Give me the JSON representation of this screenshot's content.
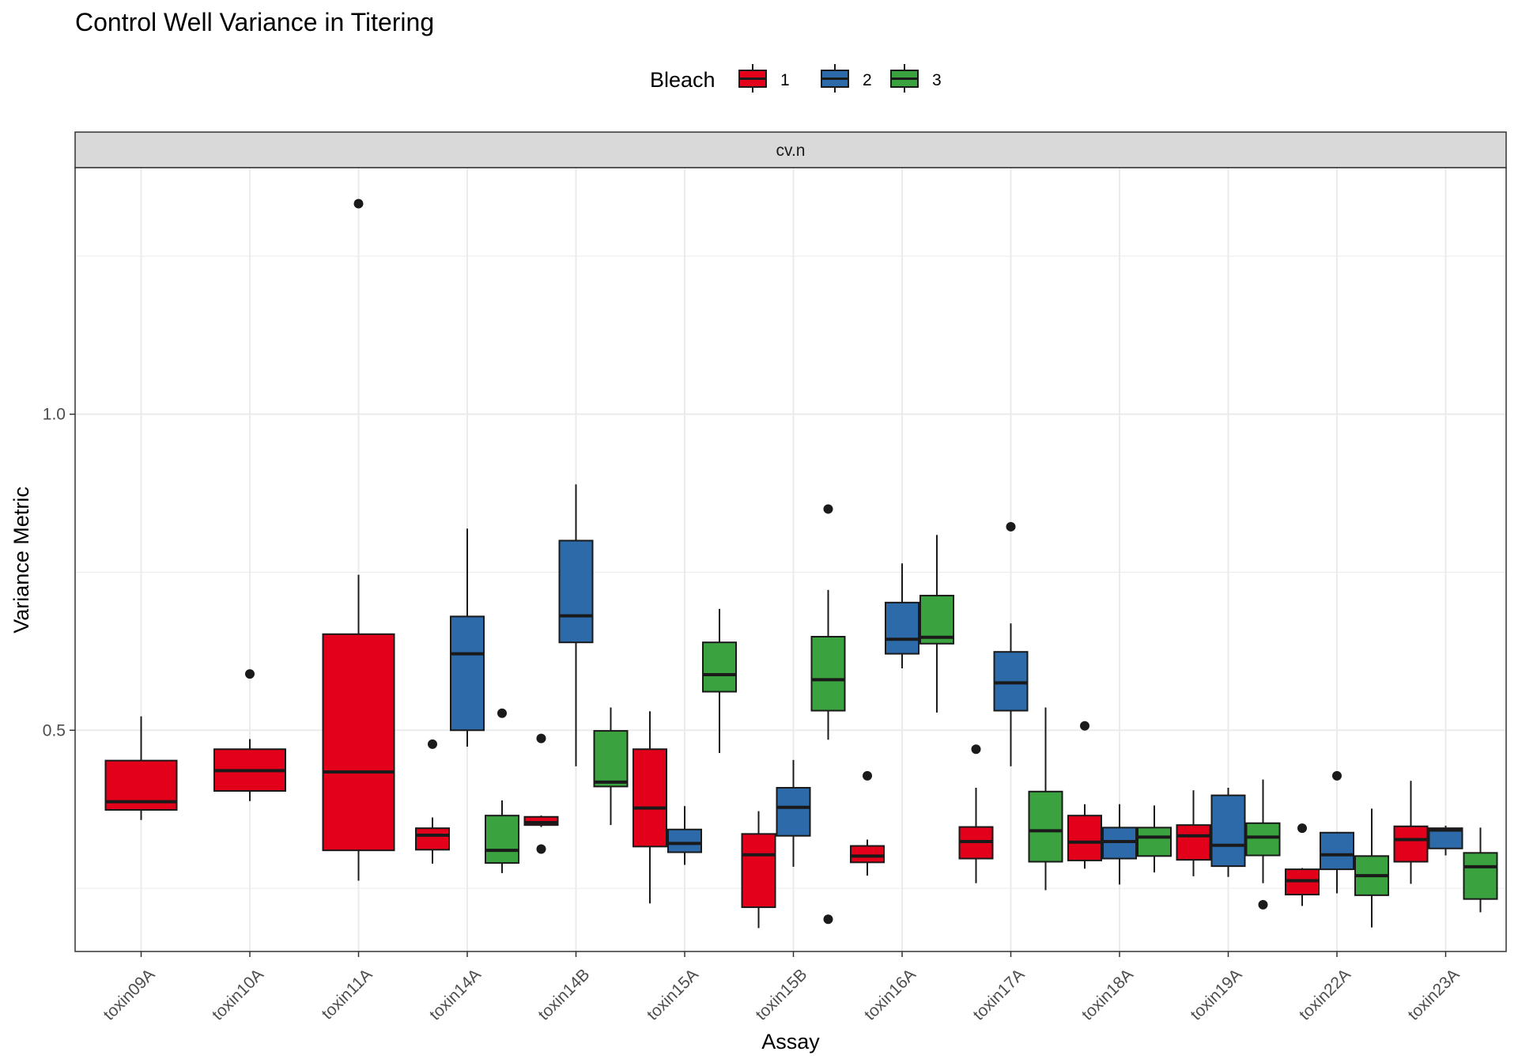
{
  "chart_data": {
    "type": "boxplot",
    "title": "Control Well Variance in Titering",
    "xlabel": "Assay",
    "ylabel": "Variance Metric",
    "facet": "cv.n",
    "legend": {
      "title": "Bleach",
      "position": "top",
      "entries": [
        "1",
        "2",
        "3"
      ]
    },
    "colors": {
      "1": "#E2001A",
      "2": "#2C6AAA",
      "3": "#3AA23E"
    },
    "ylim": [
      0.15,
      1.39
    ],
    "yticks": [
      0.5,
      1.0
    ],
    "ytick_labels": [
      "0.5",
      "1.0"
    ],
    "grid": true,
    "categories": [
      "toxin09A",
      "toxin10A",
      "toxin11A",
      "toxin14A",
      "toxin14B",
      "toxin15A",
      "toxin15B",
      "toxin16A",
      "toxin17A",
      "toxin18A",
      "toxin19A",
      "toxin22A",
      "toxin23A"
    ],
    "boxes": [
      {
        "category": "toxin09A",
        "group": "1",
        "whisker_low": 0.358,
        "q1": 0.374,
        "median": 0.387,
        "q3": 0.452,
        "whisker_high": 0.522,
        "outliers": []
      },
      {
        "category": "toxin10A",
        "group": "1",
        "whisker_low": 0.388,
        "q1": 0.404,
        "median": 0.436,
        "q3": 0.47,
        "whisker_high": 0.486,
        "outliers": [
          0.589
        ]
      },
      {
        "category": "toxin11A",
        "group": "1",
        "whisker_low": 0.262,
        "q1": 0.31,
        "median": 0.434,
        "q3": 0.652,
        "whisker_high": 0.746,
        "outliers": [
          1.333
        ]
      },
      {
        "category": "toxin14A",
        "group": "1",
        "whisker_low": 0.289,
        "q1": 0.311,
        "median": 0.334,
        "q3": 0.345,
        "whisker_high": 0.362,
        "outliers": [
          0.478
        ]
      },
      {
        "category": "toxin14A",
        "group": "2",
        "whisker_low": 0.474,
        "q1": 0.5,
        "median": 0.621,
        "q3": 0.68,
        "whisker_high": 0.819,
        "outliers": []
      },
      {
        "category": "toxin14A",
        "group": "3",
        "whisker_low": 0.274,
        "q1": 0.29,
        "median": 0.31,
        "q3": 0.365,
        "whisker_high": 0.389,
        "outliers": [
          0.527
        ]
      },
      {
        "category": "toxin14B",
        "group": "1",
        "whisker_low": 0.347,
        "q1": 0.35,
        "median": 0.354,
        "q3": 0.363,
        "whisker_high": 0.365,
        "outliers": [
          0.487,
          0.312
        ]
      },
      {
        "category": "toxin14B",
        "group": "2",
        "whisker_low": 0.443,
        "q1": 0.639,
        "median": 0.681,
        "q3": 0.8,
        "whisker_high": 0.889,
        "outliers": []
      },
      {
        "category": "toxin14B",
        "group": "3",
        "whisker_low": 0.35,
        "q1": 0.411,
        "median": 0.418,
        "q3": 0.499,
        "whisker_high": 0.536,
        "outliers": []
      },
      {
        "category": "toxin15A",
        "group": "1",
        "whisker_low": 0.226,
        "q1": 0.316,
        "median": 0.377,
        "q3": 0.47,
        "whisker_high": 0.53,
        "outliers": []
      },
      {
        "category": "toxin15A",
        "group": "2",
        "whisker_low": 0.287,
        "q1": 0.307,
        "median": 0.321,
        "q3": 0.343,
        "whisker_high": 0.38,
        "outliers": []
      },
      {
        "category": "toxin15A",
        "group": "3",
        "whisker_low": 0.464,
        "q1": 0.561,
        "median": 0.588,
        "q3": 0.639,
        "whisker_high": 0.692,
        "outliers": []
      },
      {
        "category": "toxin15B",
        "group": "1",
        "whisker_low": 0.187,
        "q1": 0.22,
        "median": 0.303,
        "q3": 0.336,
        "whisker_high": 0.372,
        "outliers": []
      },
      {
        "category": "toxin15B",
        "group": "2",
        "whisker_low": 0.284,
        "q1": 0.333,
        "median": 0.378,
        "q3": 0.409,
        "whisker_high": 0.453,
        "outliers": []
      },
      {
        "category": "toxin15B",
        "group": "3",
        "whisker_low": 0.485,
        "q1": 0.531,
        "median": 0.58,
        "q3": 0.648,
        "whisker_high": 0.722,
        "outliers": [
          0.85,
          0.201
        ]
      },
      {
        "category": "toxin16A",
        "group": "1",
        "whisker_low": 0.27,
        "q1": 0.291,
        "median": 0.301,
        "q3": 0.317,
        "whisker_high": 0.327,
        "outliers": [
          0.428
        ]
      },
      {
        "category": "toxin16A",
        "group": "2",
        "whisker_low": 0.598,
        "q1": 0.621,
        "median": 0.644,
        "q3": 0.702,
        "whisker_high": 0.764,
        "outliers": []
      },
      {
        "category": "toxin16A",
        "group": "3",
        "whisker_low": 0.528,
        "q1": 0.637,
        "median": 0.647,
        "q3": 0.713,
        "whisker_high": 0.809,
        "outliers": []
      },
      {
        "category": "toxin17A",
        "group": "1",
        "whisker_low": 0.258,
        "q1": 0.297,
        "median": 0.324,
        "q3": 0.347,
        "whisker_high": 0.409,
        "outliers": [
          0.47
        ]
      },
      {
        "category": "toxin17A",
        "group": "2",
        "whisker_low": 0.443,
        "q1": 0.531,
        "median": 0.575,
        "q3": 0.624,
        "whisker_high": 0.669,
        "outliers": [
          0.822
        ]
      },
      {
        "category": "toxin17A",
        "group": "3",
        "whisker_low": 0.247,
        "q1": 0.292,
        "median": 0.341,
        "q3": 0.403,
        "whisker_high": 0.536,
        "outliers": []
      },
      {
        "category": "toxin18A",
        "group": "1",
        "whisker_low": 0.281,
        "q1": 0.294,
        "median": 0.323,
        "q3": 0.365,
        "whisker_high": 0.383,
        "outliers": [
          0.507
        ]
      },
      {
        "category": "toxin18A",
        "group": "2",
        "whisker_low": 0.256,
        "q1": 0.297,
        "median": 0.324,
        "q3": 0.346,
        "whisker_high": 0.383,
        "outliers": []
      },
      {
        "category": "toxin18A",
        "group": "3",
        "whisker_low": 0.275,
        "q1": 0.301,
        "median": 0.331,
        "q3": 0.346,
        "whisker_high": 0.381,
        "outliers": []
      },
      {
        "category": "toxin19A",
        "group": "1",
        "whisker_low": 0.269,
        "q1": 0.295,
        "median": 0.333,
        "q3": 0.35,
        "whisker_high": 0.405,
        "outliers": []
      },
      {
        "category": "toxin19A",
        "group": "2",
        "whisker_low": 0.268,
        "q1": 0.285,
        "median": 0.318,
        "q3": 0.397,
        "whisker_high": 0.409,
        "outliers": []
      },
      {
        "category": "toxin19A",
        "group": "3",
        "whisker_low": 0.258,
        "q1": 0.302,
        "median": 0.331,
        "q3": 0.353,
        "whisker_high": 0.422,
        "outliers": [
          0.224
        ]
      },
      {
        "category": "toxin22A",
        "group": "1",
        "whisker_low": 0.222,
        "q1": 0.24,
        "median": 0.262,
        "q3": 0.28,
        "whisker_high": 0.282,
        "outliers": [
          0.345
        ]
      },
      {
        "category": "toxin22A",
        "group": "2",
        "whisker_low": 0.242,
        "q1": 0.28,
        "median": 0.303,
        "q3": 0.338,
        "whisker_high": 0.339,
        "outliers": [
          0.428
        ]
      },
      {
        "category": "toxin22A",
        "group": "3",
        "whisker_low": 0.188,
        "q1": 0.239,
        "median": 0.27,
        "q3": 0.301,
        "whisker_high": 0.376,
        "outliers": []
      },
      {
        "category": "toxin23A",
        "group": "1",
        "whisker_low": 0.257,
        "q1": 0.292,
        "median": 0.327,
        "q3": 0.348,
        "whisker_high": 0.42,
        "outliers": []
      },
      {
        "category": "toxin23A",
        "group": "2",
        "whisker_low": 0.302,
        "q1": 0.313,
        "median": 0.342,
        "q3": 0.345,
        "whisker_high": 0.349,
        "outliers": []
      },
      {
        "category": "toxin23A",
        "group": "3",
        "whisker_low": 0.212,
        "q1": 0.233,
        "median": 0.284,
        "q3": 0.306,
        "whisker_high": 0.346,
        "outliers": []
      }
    ]
  }
}
